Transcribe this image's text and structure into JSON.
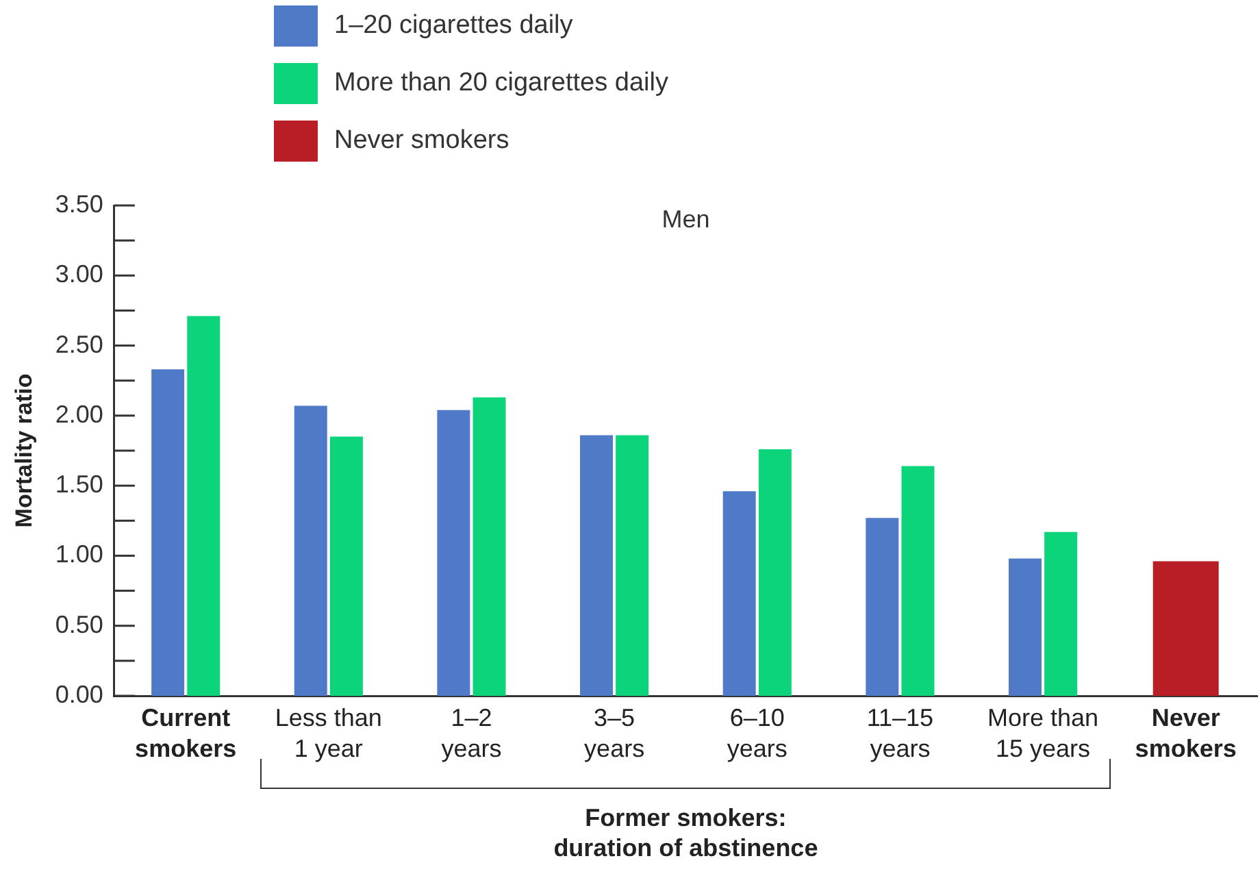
{
  "chart_data": {
    "type": "bar",
    "title": "Men",
    "ylabel": "Mortality ratio",
    "categories": [
      "Current smokers",
      "Less than 1 year",
      "1–2 years",
      "3–5 years",
      "6–10 years",
      "11–15 years",
      "More than 15 years",
      "Never smokers"
    ],
    "series": [
      {
        "name": "1–20 cigarettes daily",
        "color": "#4e7ac7",
        "values": [
          2.33,
          2.07,
          2.04,
          1.86,
          1.46,
          1.27,
          0.98,
          null
        ]
      },
      {
        "name": "More than 20 cigarettes daily",
        "color": "#0bd47b",
        "values": [
          2.71,
          1.85,
          2.13,
          1.86,
          1.76,
          1.64,
          1.17,
          null
        ]
      },
      {
        "name": "Never smokers",
        "color": "#b71f24",
        "values": [
          null,
          null,
          null,
          null,
          null,
          null,
          null,
          0.96
        ]
      }
    ],
    "ylim": [
      0,
      3.5
    ],
    "yticks": [
      {
        "value": 0,
        "label": "0.00"
      },
      {
        "value": 0.25,
        "label": null
      },
      {
        "value": 0.5,
        "label": "0.50"
      },
      {
        "value": 0.75,
        "label": null
      },
      {
        "value": 1,
        "label": "1.00"
      },
      {
        "value": 1.25,
        "label": null
      },
      {
        "value": 1.5,
        "label": "1.50"
      },
      {
        "value": 1.75,
        "label": null
      },
      {
        "value": 2,
        "label": "2.00"
      },
      {
        "value": 2.25,
        "label": null
      },
      {
        "value": 2.5,
        "label": "2.50"
      },
      {
        "value": 2.75,
        "label": null
      },
      {
        "value": 3,
        "label": "3.00"
      },
      {
        "value": 3.25,
        "label": null
      },
      {
        "value": 3.5,
        "label": "3.50"
      }
    ],
    "grid": false,
    "legend": "top left",
    "annotations": [
      "Former smokers: duration of abstinence"
    ]
  }
}
